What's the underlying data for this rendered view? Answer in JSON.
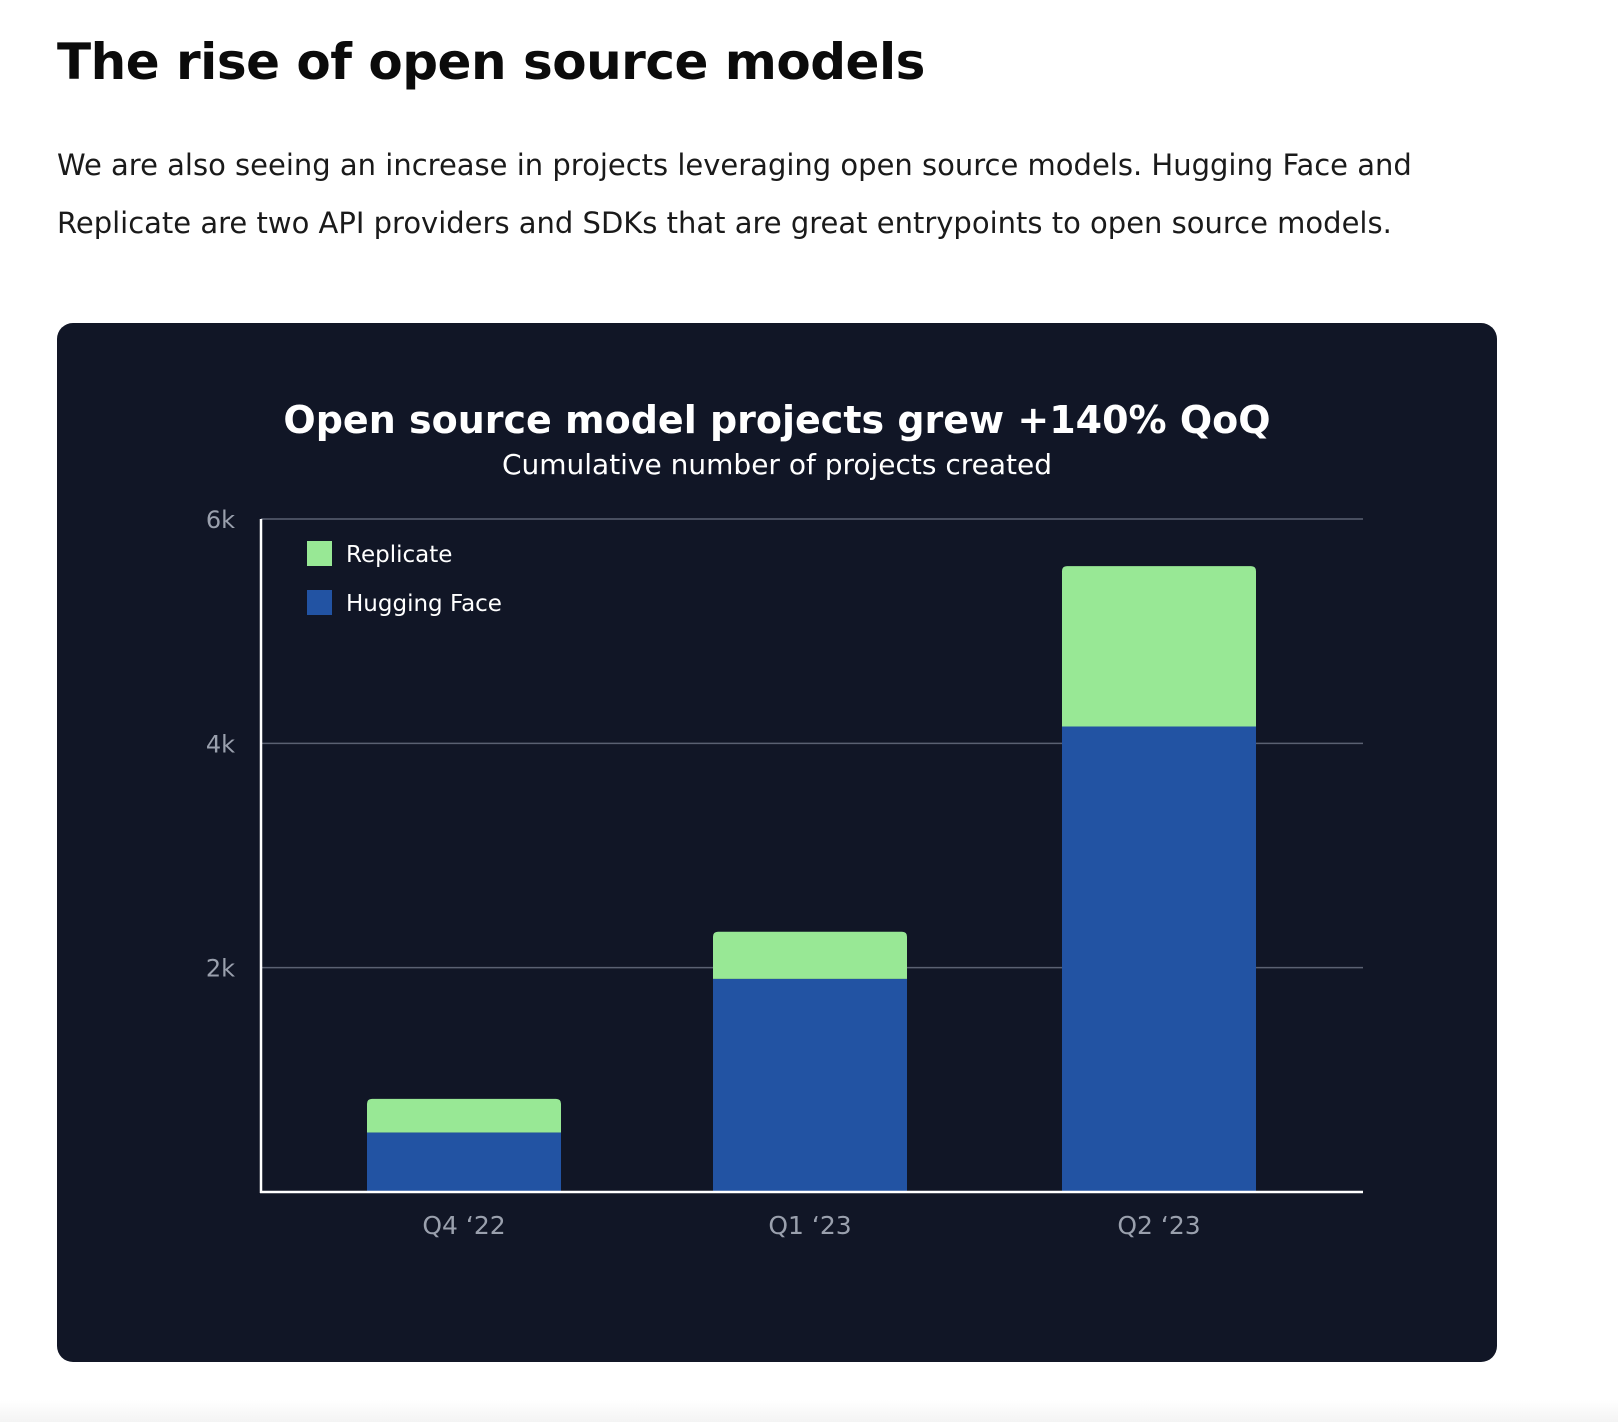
{
  "article": {
    "heading": "The rise of open source models",
    "paragraph": "We are also seeing an increase in projects leveraging open source models. Hugging Face and Replicate are two API providers and SDKs that are great entrypoints to open source models."
  },
  "colors": {
    "card_background": "#111626",
    "replicate": "#98e895",
    "hugging_face": "#2253a3",
    "axis": "#ffffff",
    "gridline": "#5b6172",
    "tick_text": "#9aa0ad",
    "title_text": "#ffffff"
  },
  "chart_data": {
    "type": "bar",
    "stacked": true,
    "title": "Open source model projects grew +140% QoQ",
    "subtitle": "Cumulative number of projects created",
    "xlabel": "",
    "ylabel": "",
    "categories": [
      "Q4 ‘22",
      "Q1 ‘23",
      "Q2 ‘23"
    ],
    "series": [
      {
        "name": "Hugging Face",
        "color": "#2253a3",
        "values": [
          530,
          1900,
          4150
        ]
      },
      {
        "name": "Replicate",
        "color": "#98e895",
        "values": [
          300,
          420,
          1430
        ]
      }
    ],
    "legend_order": [
      "Replicate",
      "Hugging Face"
    ],
    "legend_position": "top-left",
    "ylim": [
      0,
      6000
    ],
    "yticks": [
      2000,
      4000,
      6000
    ],
    "ytick_labels": [
      "2k",
      "4k",
      "6k"
    ],
    "grid": true
  }
}
